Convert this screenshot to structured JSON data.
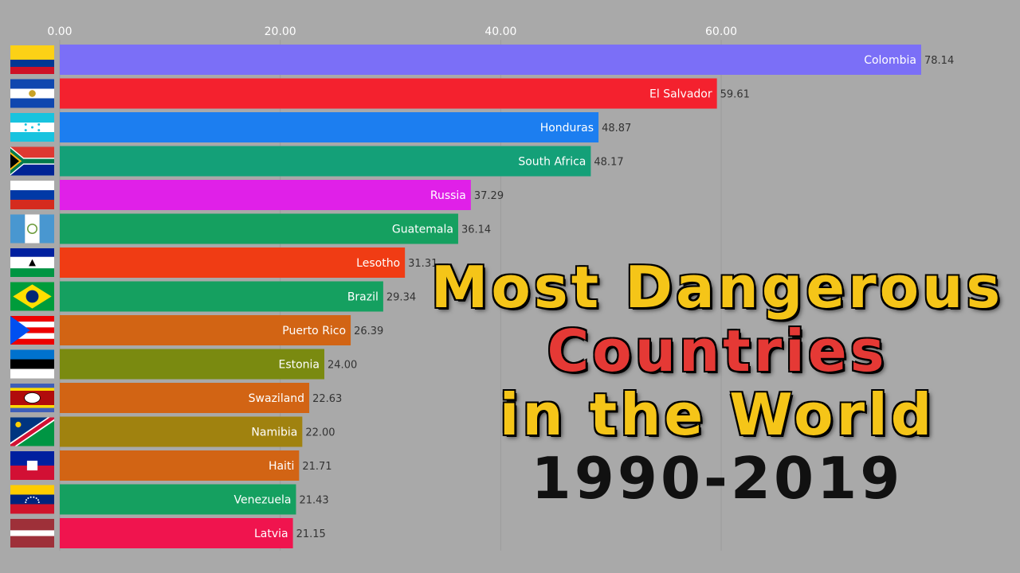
{
  "title": {
    "line1": "Most Dangerous",
    "line2": "Countries",
    "line3": "in the World",
    "line4": "1990-2019"
  },
  "chart_data": {
    "type": "bar",
    "orientation": "horizontal",
    "ticks": [
      "0.00",
      "20.00",
      "40.00",
      "60.00"
    ],
    "tick_values": [
      0,
      20,
      40,
      60
    ],
    "xlim": [
      0,
      78.14
    ],
    "grid": true,
    "categories": [
      "Colombia",
      "El Salvador",
      "Honduras",
      "South Africa",
      "Russia",
      "Guatemala",
      "Lesotho",
      "Brazil",
      "Puerto Rico",
      "Estonia",
      "Swaziland",
      "Namibia",
      "Haiti",
      "Venezuela",
      "Latvia"
    ],
    "values": [
      78.14,
      59.61,
      48.87,
      48.17,
      37.29,
      36.14,
      31.31,
      29.34,
      26.39,
      24.0,
      22.63,
      22.0,
      21.71,
      21.43,
      21.15
    ],
    "value_labels": [
      "78.14",
      "59.61",
      "48.87",
      "48.17",
      "37.29",
      "36.14",
      "31.31",
      "29.34",
      "26.39",
      "24.00",
      "22.63",
      "22.00",
      "21.71",
      "21.43",
      "21.15"
    ],
    "colors": [
      "#7b6ff7",
      "#f4212e",
      "#1c7ef0",
      "#14a078",
      "#e020e8",
      "#15a060",
      "#f03c14",
      "#15a060",
      "#d26414",
      "#7a8a10",
      "#d26414",
      "#a0820f",
      "#d26414",
      "#15a060",
      "#f0144e"
    ],
    "flags": [
      "colombia-flag-icon",
      "el-salvador-flag-icon",
      "honduras-flag-icon",
      "south-africa-flag-icon",
      "russia-flag-icon",
      "guatemala-flag-icon",
      "lesotho-flag-icon",
      "brazil-flag-icon",
      "puerto-rico-flag-icon",
      "estonia-flag-icon",
      "swaziland-flag-icon",
      "namibia-flag-icon",
      "haiti-flag-icon",
      "venezuela-flag-icon",
      "latvia-flag-icon"
    ]
  }
}
